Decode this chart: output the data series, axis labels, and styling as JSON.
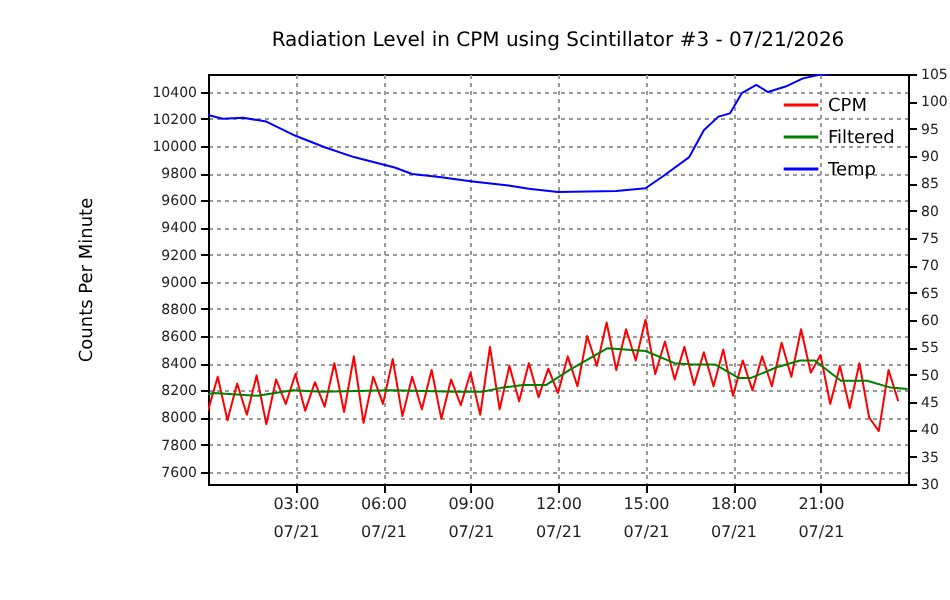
{
  "chart_data": {
    "type": "line",
    "title": "Radiation Level in CPM using Scintillator #3 - 07/21/2026",
    "ylabel": "Counts Per Minute",
    "xlim": [
      "2026-07-21T00:00",
      "2026-07-22T00:00"
    ],
    "xticks": [
      {
        "value": "2026-07-21T03:00",
        "label": "03:00\n07/21"
      },
      {
        "value": "2026-07-21T06:00",
        "label": "06:00\n07/21"
      },
      {
        "value": "2026-07-21T09:00",
        "label": "09:00\n07/21"
      },
      {
        "value": "2026-07-21T12:00",
        "label": "12:00\n07/21"
      },
      {
        "value": "2026-07-21T15:00",
        "label": "15:00\n07/21"
      },
      {
        "value": "2026-07-21T18:00",
        "label": "18:00\n07/21"
      },
      {
        "value": "2026-07-21T21:00",
        "label": "21:00\n07/21"
      }
    ],
    "ylim": [
      7510,
      10530
    ],
    "yticks": [
      7600,
      7800,
      8000,
      8200,
      8400,
      8600,
      8800,
      9000,
      9200,
      9400,
      9600,
      9800,
      10000,
      10200,
      10400
    ],
    "y2lim": [
      30,
      105
    ],
    "y2ticks": [
      30,
      35,
      40,
      45,
      50,
      55,
      60,
      65,
      70,
      75,
      80,
      85,
      90,
      95,
      100,
      105
    ],
    "grid": true,
    "legend": "top right",
    "series": [
      {
        "name": "CPM",
        "color": "#ff0000",
        "x": [
          "2026-07-21T00:00",
          "2026-07-21T00:20",
          "2026-07-21T00:40",
          "2026-07-21T01:00",
          "2026-07-21T01:20",
          "2026-07-21T01:40",
          "2026-07-21T02:00",
          "2026-07-21T02:20",
          "2026-07-21T02:40",
          "2026-07-21T03:00",
          "2026-07-21T03:20",
          "2026-07-21T03:40",
          "2026-07-21T04:00",
          "2026-07-21T04:20",
          "2026-07-21T04:40",
          "2026-07-21T05:00",
          "2026-07-21T05:20",
          "2026-07-21T05:40",
          "2026-07-21T06:00",
          "2026-07-21T06:20",
          "2026-07-21T06:40",
          "2026-07-21T07:00",
          "2026-07-21T07:20",
          "2026-07-21T07:40",
          "2026-07-21T08:00",
          "2026-07-21T08:20",
          "2026-07-21T08:40",
          "2026-07-21T09:00",
          "2026-07-21T09:20",
          "2026-07-21T09:40",
          "2026-07-21T10:00",
          "2026-07-21T10:20",
          "2026-07-21T10:40",
          "2026-07-21T11:00",
          "2026-07-21T11:20",
          "2026-07-21T11:40",
          "2026-07-21T12:00",
          "2026-07-21T12:20",
          "2026-07-21T12:40",
          "2026-07-21T13:00",
          "2026-07-21T13:20",
          "2026-07-21T13:40",
          "2026-07-21T14:00",
          "2026-07-21T14:20",
          "2026-07-21T14:40",
          "2026-07-21T15:00",
          "2026-07-21T15:20",
          "2026-07-21T15:40",
          "2026-07-21T16:00",
          "2026-07-21T16:20",
          "2026-07-21T16:40",
          "2026-07-21T17:00",
          "2026-07-21T17:20",
          "2026-07-21T17:40",
          "2026-07-21T18:00",
          "2026-07-21T18:20",
          "2026-07-21T18:40",
          "2026-07-21T19:00",
          "2026-07-21T19:20",
          "2026-07-21T19:40",
          "2026-07-21T20:00",
          "2026-07-21T20:20",
          "2026-07-21T20:40",
          "2026-07-21T21:00",
          "2026-07-21T21:20",
          "2026-07-21T21:40",
          "2026-07-21T22:00",
          "2026-07-21T22:20",
          "2026-07-21T22:40",
          "2026-07-21T23:00",
          "2026-07-21T23:20",
          "2026-07-21T23:40"
        ],
        "values": [
          8050,
          8300,
          7980,
          8250,
          8020,
          8310,
          7950,
          8280,
          8100,
          8320,
          8050,
          8260,
          8080,
          8400,
          8040,
          8450,
          7960,
          8300,
          8100,
          8430,
          8010,
          8300,
          8060,
          8350,
          7990,
          8280,
          8090,
          8330,
          8020,
          8520,
          8060,
          8380,
          8120,
          8400,
          8150,
          8360,
          8180,
          8450,
          8230,
          8600,
          8380,
          8700,
          8350,
          8650,
          8420,
          8720,
          8320,
          8560,
          8280,
          8520,
          8240,
          8480,
          8230,
          8500,
          8160,
          8420,
          8200,
          8450,
          8230,
          8550,
          8300,
          8650,
          8330,
          8460,
          8100,
          8380,
          8070,
          8400,
          8000,
          7900,
          8350,
          8120
        ]
      },
      {
        "name": "Filtered",
        "color": "#007f00",
        "x": [
          "2026-07-21T00:00",
          "2026-07-21T00:12",
          "2026-07-21T01:42",
          "2026-07-21T02:54",
          "2026-07-21T03:54",
          "2026-07-21T06:15",
          "2026-07-21T08:30",
          "2026-07-21T09:24",
          "2026-07-21T10:06",
          "2026-07-21T10:48",
          "2026-07-21T11:36",
          "2026-07-21T12:24",
          "2026-07-21T13:42",
          "2026-07-21T15:00",
          "2026-07-21T16:00",
          "2026-07-21T16:36",
          "2026-07-21T17:24",
          "2026-07-21T18:12",
          "2026-07-21T18:36",
          "2026-07-21T19:30",
          "2026-07-21T20:18",
          "2026-07-21T20:48",
          "2026-07-21T21:42",
          "2026-07-21T22:36",
          "2026-07-21T23:24",
          "2026-07-21T23:59"
        ],
        "values": [
          8170,
          8180,
          8160,
          8200,
          8190,
          8200,
          8190,
          8190,
          8220,
          8240,
          8240,
          8350,
          8510,
          8490,
          8400,
          8390,
          8390,
          8290,
          8290,
          8370,
          8420,
          8420,
          8270,
          8270,
          8220,
          8210
        ]
      },
      {
        "name": "Temp",
        "color": "#0000ff",
        "axis": "y2",
        "x": [
          "2026-07-21T00:00",
          "2026-07-21T00:30",
          "2026-07-21T01:12",
          "2026-07-21T02:00",
          "2026-07-21T03:00",
          "2026-07-21T04:00",
          "2026-07-21T05:00",
          "2026-07-21T06:24",
          "2026-07-21T07:00",
          "2026-07-21T08:00",
          "2026-07-21T09:00",
          "2026-07-21T10:18",
          "2026-07-21T11:00",
          "2026-07-21T12:00",
          "2026-07-21T13:00",
          "2026-07-21T14:00",
          "2026-07-21T15:00",
          "2026-07-21T15:36",
          "2026-07-21T16:30",
          "2026-07-21T17:00",
          "2026-07-21T17:30",
          "2026-07-21T17:54",
          "2026-07-21T18:18",
          "2026-07-21T18:48",
          "2026-07-21T19:12",
          "2026-07-21T19:48",
          "2026-07-21T20:24",
          "2026-07-21T21:00",
          "2026-07-21T21:18"
        ],
        "values": [
          97.5,
          96.8,
          97.0,
          96.3,
          93.7,
          91.6,
          89.8,
          87.9,
          86.7,
          86.1,
          85.4,
          84.6,
          84.0,
          83.4,
          83.5,
          83.6,
          84.1,
          86.3,
          89.8,
          94.7,
          97.2,
          97.8,
          101.5,
          103.0,
          101.7,
          102.7,
          104.2,
          104.9,
          105.0
        ]
      }
    ]
  }
}
